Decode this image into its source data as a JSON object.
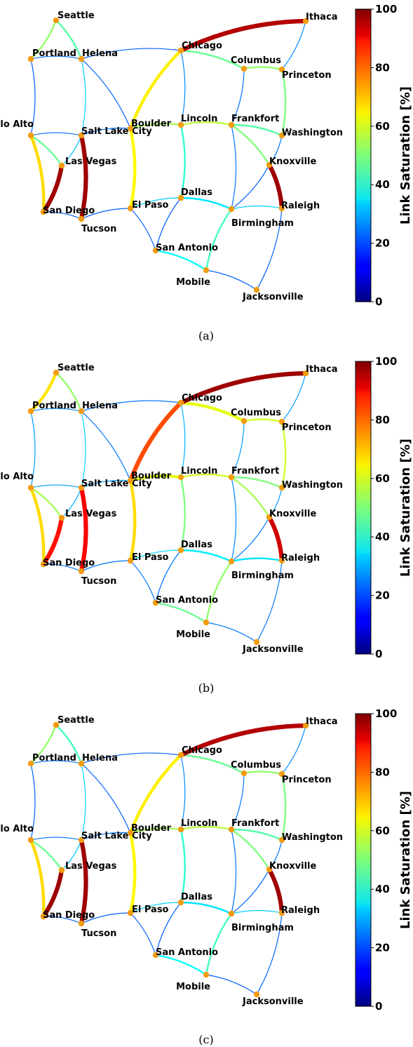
{
  "colorbar": {
    "label": "Link Saturation [%]",
    "ticks": [
      "0",
      "20",
      "40",
      "60",
      "80",
      "100"
    ],
    "range": [
      0,
      100
    ]
  },
  "nodes": [
    {
      "id": "Seattle",
      "label": "Seattle"
    },
    {
      "id": "Portland",
      "label": "Portland"
    },
    {
      "id": "Helena",
      "label": "Helena"
    },
    {
      "id": "PaloAlto",
      "label": "Palo Alto"
    },
    {
      "id": "SaltLakeCity",
      "label": "Salt Lake City"
    },
    {
      "id": "LasVegas",
      "label": "Las Vegas"
    },
    {
      "id": "SanDiego",
      "label": "San Diego"
    },
    {
      "id": "Tucson",
      "label": "Tucson"
    },
    {
      "id": "Boulder",
      "label": "Boulder"
    },
    {
      "id": "ElPaso",
      "label": "El Paso"
    },
    {
      "id": "SanAntonio",
      "label": "San Antonio"
    },
    {
      "id": "Chicago",
      "label": "Chicago"
    },
    {
      "id": "Lincoln",
      "label": "Lincoln"
    },
    {
      "id": "Dallas",
      "label": "Dallas"
    },
    {
      "id": "Mobile",
      "label": "Mobile"
    },
    {
      "id": "Columbus",
      "label": "Columbus"
    },
    {
      "id": "Frankfort",
      "label": "Frankfort"
    },
    {
      "id": "Birmingham",
      "label": "Birmingham"
    },
    {
      "id": "Jacksonville",
      "label": "Jacksonville"
    },
    {
      "id": "Ithaca",
      "label": "Ithaca"
    },
    {
      "id": "Princeton",
      "label": "Princeton"
    },
    {
      "id": "Washington",
      "label": "Washington"
    },
    {
      "id": "Knoxville",
      "label": "Knoxville"
    },
    {
      "id": "Raleigh",
      "label": "Raleigh"
    }
  ],
  "panels": [
    {
      "caption": "(a)",
      "links": [
        {
          "from": "Seattle",
          "to": "Portland",
          "saturation": 52
        },
        {
          "from": "Seattle",
          "to": "Helena",
          "saturation": 46
        },
        {
          "from": "Portland",
          "to": "Helena",
          "saturation": 24
        },
        {
          "from": "Portland",
          "to": "PaloAlto",
          "saturation": 22
        },
        {
          "from": "Helena",
          "to": "Chicago",
          "saturation": 22
        },
        {
          "from": "Helena",
          "to": "SaltLakeCity",
          "saturation": 33
        },
        {
          "from": "Helena",
          "to": "Boulder",
          "saturation": 22
        },
        {
          "from": "PaloAlto",
          "to": "SaltLakeCity",
          "saturation": 24
        },
        {
          "from": "PaloAlto",
          "to": "LasVegas",
          "saturation": 48
        },
        {
          "from": "PaloAlto",
          "to": "SanDiego",
          "saturation": 66
        },
        {
          "from": "SaltLakeCity",
          "to": "LasVegas",
          "saturation": 32
        },
        {
          "from": "SaltLakeCity",
          "to": "Tucson",
          "saturation": 97
        },
        {
          "from": "SaltLakeCity",
          "to": "Boulder",
          "saturation": 24
        },
        {
          "from": "LasVegas",
          "to": "SanDiego",
          "saturation": 97
        },
        {
          "from": "SanDiego",
          "to": "Tucson",
          "saturation": 22
        },
        {
          "from": "Boulder",
          "to": "Chicago",
          "saturation": 64
        },
        {
          "from": "Boulder",
          "to": "Lincoln",
          "saturation": 54
        },
        {
          "from": "Boulder",
          "to": "ElPaso",
          "saturation": 63
        },
        {
          "from": "Tucson",
          "to": "ElPaso",
          "saturation": 22
        },
        {
          "from": "ElPaso",
          "to": "Dallas",
          "saturation": 33
        },
        {
          "from": "ElPaso",
          "to": "SanAntonio",
          "saturation": 22
        },
        {
          "from": "SanAntonio",
          "to": "Dallas",
          "saturation": 22
        },
        {
          "from": "SanAntonio",
          "to": "Mobile",
          "saturation": 38
        },
        {
          "from": "Chicago",
          "to": "Lincoln",
          "saturation": 26
        },
        {
          "from": "Chicago",
          "to": "Columbus",
          "saturation": 48
        },
        {
          "from": "Chicago",
          "to": "Ithaca",
          "saturation": 95
        },
        {
          "from": "Lincoln",
          "to": "Frankfort",
          "saturation": 56
        },
        {
          "from": "Lincoln",
          "to": "Dallas",
          "saturation": 42
        },
        {
          "from": "Dallas",
          "to": "Birmingham",
          "saturation": 35
        },
        {
          "from": "Mobile",
          "to": "Birmingham",
          "saturation": 44
        },
        {
          "from": "Mobile",
          "to": "Jacksonville",
          "saturation": 22
        },
        {
          "from": "Columbus",
          "to": "Frankfort",
          "saturation": 24
        },
        {
          "from": "Columbus",
          "to": "Princeton",
          "saturation": 52
        },
        {
          "from": "Ithaca",
          "to": "Princeton",
          "saturation": 26
        },
        {
          "from": "Princeton",
          "to": "Washington",
          "saturation": 50
        },
        {
          "from": "Frankfort",
          "to": "Washington",
          "saturation": 46
        },
        {
          "from": "Frankfort",
          "to": "Knoxville",
          "saturation": 50
        },
        {
          "from": "Frankfort",
          "to": "Birmingham",
          "saturation": 24
        },
        {
          "from": "Washington",
          "to": "Knoxville",
          "saturation": 24
        },
        {
          "from": "Knoxville",
          "to": "Raleigh",
          "saturation": 97
        },
        {
          "from": "Knoxville",
          "to": "Birmingham",
          "saturation": 22
        },
        {
          "from": "Birmingham",
          "to": "Raleigh",
          "saturation": 33
        },
        {
          "from": "Raleigh",
          "to": "Jacksonville",
          "saturation": 22
        }
      ]
    },
    {
      "caption": "(b)",
      "links": [
        {
          "from": "Seattle",
          "to": "Portland",
          "saturation": 65
        },
        {
          "from": "Seattle",
          "to": "Helena",
          "saturation": 52
        },
        {
          "from": "Portland",
          "to": "Helena",
          "saturation": 26
        },
        {
          "from": "Portland",
          "to": "PaloAlto",
          "saturation": 28
        },
        {
          "from": "Helena",
          "to": "Chicago",
          "saturation": 24
        },
        {
          "from": "Helena",
          "to": "SaltLakeCity",
          "saturation": 33
        },
        {
          "from": "Helena",
          "to": "Boulder",
          "saturation": 24
        },
        {
          "from": "PaloAlto",
          "to": "SaltLakeCity",
          "saturation": 28
        },
        {
          "from": "PaloAlto",
          "to": "LasVegas",
          "saturation": 54
        },
        {
          "from": "PaloAlto",
          "to": "SanDiego",
          "saturation": 66
        },
        {
          "from": "SaltLakeCity",
          "to": "LasVegas",
          "saturation": 30
        },
        {
          "from": "SaltLakeCity",
          "to": "Tucson",
          "saturation": 88
        },
        {
          "from": "SaltLakeCity",
          "to": "Boulder",
          "saturation": 28
        },
        {
          "from": "LasVegas",
          "to": "SanDiego",
          "saturation": 86
        },
        {
          "from": "SanDiego",
          "to": "Tucson",
          "saturation": 24
        },
        {
          "from": "Boulder",
          "to": "Chicago",
          "saturation": 80
        },
        {
          "from": "Boulder",
          "to": "Lincoln",
          "saturation": 60
        },
        {
          "from": "Boulder",
          "to": "ElPaso",
          "saturation": 66
        },
        {
          "from": "Tucson",
          "to": "ElPaso",
          "saturation": 24
        },
        {
          "from": "ElPaso",
          "to": "Dallas",
          "saturation": 34
        },
        {
          "from": "ElPaso",
          "to": "SanAntonio",
          "saturation": 24
        },
        {
          "from": "SanAntonio",
          "to": "Dallas",
          "saturation": 24
        },
        {
          "from": "SanAntonio",
          "to": "Mobile",
          "saturation": 48
        },
        {
          "from": "Chicago",
          "to": "Lincoln",
          "saturation": 30
        },
        {
          "from": "Chicago",
          "to": "Columbus",
          "saturation": 60
        },
        {
          "from": "Chicago",
          "to": "Ithaca",
          "saturation": 97
        },
        {
          "from": "Lincoln",
          "to": "Frankfort",
          "saturation": 58
        },
        {
          "from": "Lincoln",
          "to": "Dallas",
          "saturation": 50
        },
        {
          "from": "Dallas",
          "to": "Birmingham",
          "saturation": 36
        },
        {
          "from": "Mobile",
          "to": "Birmingham",
          "saturation": 52
        },
        {
          "from": "Mobile",
          "to": "Jacksonville",
          "saturation": 24
        },
        {
          "from": "Columbus",
          "to": "Frankfort",
          "saturation": 28
        },
        {
          "from": "Columbus",
          "to": "Princeton",
          "saturation": 58
        },
        {
          "from": "Ithaca",
          "to": "Princeton",
          "saturation": 28
        },
        {
          "from": "Princeton",
          "to": "Washington",
          "saturation": 58
        },
        {
          "from": "Frankfort",
          "to": "Washington",
          "saturation": 50
        },
        {
          "from": "Frankfort",
          "to": "Knoxville",
          "saturation": 54
        },
        {
          "from": "Frankfort",
          "to": "Birmingham",
          "saturation": 26
        },
        {
          "from": "Washington",
          "to": "Knoxville",
          "saturation": 28
        },
        {
          "from": "Knoxville",
          "to": "Raleigh",
          "saturation": 92
        },
        {
          "from": "Knoxville",
          "to": "Birmingham",
          "saturation": 24
        },
        {
          "from": "Birmingham",
          "to": "Raleigh",
          "saturation": 35
        },
        {
          "from": "Raleigh",
          "to": "Jacksonville",
          "saturation": 24
        }
      ]
    },
    {
      "caption": "(c)",
      "links": [
        {
          "from": "Seattle",
          "to": "Portland",
          "saturation": 52
        },
        {
          "from": "Seattle",
          "to": "Helena",
          "saturation": 44
        },
        {
          "from": "Portland",
          "to": "Helena",
          "saturation": 24
        },
        {
          "from": "Portland",
          "to": "PaloAlto",
          "saturation": 22
        },
        {
          "from": "Helena",
          "to": "Chicago",
          "saturation": 22
        },
        {
          "from": "Helena",
          "to": "SaltLakeCity",
          "saturation": 33
        },
        {
          "from": "Helena",
          "to": "Boulder",
          "saturation": 22
        },
        {
          "from": "PaloAlto",
          "to": "SaltLakeCity",
          "saturation": 24
        },
        {
          "from": "PaloAlto",
          "to": "LasVegas",
          "saturation": 48
        },
        {
          "from": "PaloAlto",
          "to": "SanDiego",
          "saturation": 66
        },
        {
          "from": "SaltLakeCity",
          "to": "LasVegas",
          "saturation": 32
        },
        {
          "from": "SaltLakeCity",
          "to": "Tucson",
          "saturation": 97
        },
        {
          "from": "SaltLakeCity",
          "to": "Boulder",
          "saturation": 24
        },
        {
          "from": "LasVegas",
          "to": "SanDiego",
          "saturation": 97
        },
        {
          "from": "SanDiego",
          "to": "Tucson",
          "saturation": 22
        },
        {
          "from": "Boulder",
          "to": "Chicago",
          "saturation": 64
        },
        {
          "from": "Boulder",
          "to": "Lincoln",
          "saturation": 54
        },
        {
          "from": "Boulder",
          "to": "ElPaso",
          "saturation": 63
        },
        {
          "from": "Tucson",
          "to": "ElPaso",
          "saturation": 22
        },
        {
          "from": "ElPaso",
          "to": "Dallas",
          "saturation": 33
        },
        {
          "from": "ElPaso",
          "to": "SanAntonio",
          "saturation": 22
        },
        {
          "from": "SanAntonio",
          "to": "Dallas",
          "saturation": 22
        },
        {
          "from": "SanAntonio",
          "to": "Mobile",
          "saturation": 38
        },
        {
          "from": "Chicago",
          "to": "Lincoln",
          "saturation": 26
        },
        {
          "from": "Chicago",
          "to": "Columbus",
          "saturation": 48
        },
        {
          "from": "Chicago",
          "to": "Ithaca",
          "saturation": 95
        },
        {
          "from": "Lincoln",
          "to": "Frankfort",
          "saturation": 56
        },
        {
          "from": "Lincoln",
          "to": "Dallas",
          "saturation": 42
        },
        {
          "from": "Dallas",
          "to": "Birmingham",
          "saturation": 35
        },
        {
          "from": "Mobile",
          "to": "Birmingham",
          "saturation": 44
        },
        {
          "from": "Mobile",
          "to": "Jacksonville",
          "saturation": 22
        },
        {
          "from": "Columbus",
          "to": "Frankfort",
          "saturation": 24
        },
        {
          "from": "Columbus",
          "to": "Princeton",
          "saturation": 52
        },
        {
          "from": "Ithaca",
          "to": "Princeton",
          "saturation": 26
        },
        {
          "from": "Princeton",
          "to": "Washington",
          "saturation": 50
        },
        {
          "from": "Frankfort",
          "to": "Washington",
          "saturation": 46
        },
        {
          "from": "Frankfort",
          "to": "Knoxville",
          "saturation": 50
        },
        {
          "from": "Frankfort",
          "to": "Birmingham",
          "saturation": 24
        },
        {
          "from": "Washington",
          "to": "Knoxville",
          "saturation": 24
        },
        {
          "from": "Knoxville",
          "to": "Raleigh",
          "saturation": 97
        },
        {
          "from": "Knoxville",
          "to": "Birmingham",
          "saturation": 22
        },
        {
          "from": "Birmingham",
          "to": "Raleigh",
          "saturation": 33
        },
        {
          "from": "Raleigh",
          "to": "Jacksonville",
          "saturation": 22
        }
      ]
    }
  ]
}
